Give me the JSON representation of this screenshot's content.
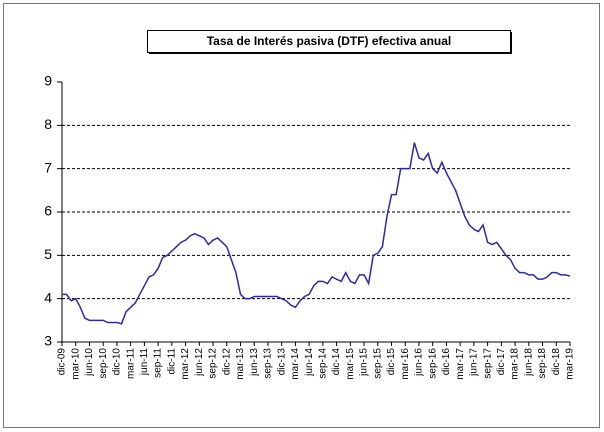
{
  "chart_data": {
    "type": "line",
    "title": "Tasa de Interés pasiva (DTF) efectiva anual",
    "categories": [
      "dic-09",
      null,
      null,
      "mar-10",
      null,
      null,
      "jun-10",
      null,
      null,
      "sep-10",
      null,
      null,
      "dic-10",
      null,
      null,
      "mar-11",
      null,
      null,
      "jun-11",
      null,
      null,
      "sep-11",
      null,
      null,
      "dic-11",
      null,
      null,
      "mar-12",
      null,
      null,
      "jun-12",
      null,
      null,
      "sep-12",
      null,
      null,
      "dic-12",
      null,
      null,
      "mar-13",
      null,
      null,
      "jun-13",
      null,
      null,
      "sep-13",
      null,
      null,
      "dic-13",
      null,
      null,
      "mar-14",
      null,
      null,
      "jun-14",
      null,
      null,
      "sep-14",
      null,
      null,
      "dic-14",
      null,
      null,
      "mar-15",
      null,
      null,
      "jun-15",
      null,
      null,
      "sep-15",
      null,
      null,
      "dic-15",
      null,
      null,
      "mar-16",
      null,
      null,
      "jun-16",
      null,
      null,
      "sep-16",
      null,
      null,
      "dic-16",
      null,
      null,
      "mar-17",
      null,
      null,
      "jun-17",
      null,
      null,
      "sep-17",
      null,
      null,
      "dic-17",
      null,
      null,
      "mar-18",
      null,
      null,
      "jun-18",
      null,
      null,
      "sep-18",
      null,
      null,
      "dic-18",
      null,
      null,
      "mar-19"
    ],
    "series": [
      {
        "name": "DTF",
        "color": "#2b2ba6",
        "values": [
          4.1,
          4.1,
          3.95,
          4.0,
          3.8,
          3.55,
          3.5,
          3.5,
          3.5,
          3.5,
          3.45,
          3.45,
          3.45,
          3.42,
          3.7,
          3.8,
          3.9,
          4.1,
          4.3,
          4.5,
          4.55,
          4.7,
          4.95,
          5.0,
          5.1,
          5.2,
          5.3,
          5.35,
          5.45,
          5.5,
          5.45,
          5.4,
          5.25,
          5.35,
          5.4,
          5.3,
          5.2,
          4.9,
          4.6,
          4.1,
          4.0,
          4.0,
          4.05,
          4.05,
          4.05,
          4.05,
          4.05,
          4.05,
          4.0,
          3.95,
          3.85,
          3.8,
          3.95,
          4.05,
          4.1,
          4.3,
          4.4,
          4.4,
          4.35,
          4.5,
          4.45,
          4.4,
          4.6,
          4.4,
          4.35,
          4.55,
          4.55,
          4.35,
          5.0,
          5.05,
          5.2,
          5.9,
          6.4,
          6.4,
          7.0,
          7.0,
          7.0,
          7.6,
          7.25,
          7.2,
          7.35,
          7.0,
          6.9,
          7.15,
          6.9,
          6.7,
          6.5,
          6.2,
          5.9,
          5.7,
          5.6,
          5.55,
          5.7,
          5.3,
          5.25,
          5.3,
          5.15,
          5.0,
          4.9,
          4.7,
          4.6,
          4.6,
          4.55,
          4.55,
          4.45,
          4.45,
          4.5,
          4.6,
          4.6,
          4.55,
          4.55,
          4.52
        ]
      }
    ],
    "ylim": [
      3,
      9
    ],
    "yticks": [
      3,
      4,
      5,
      6,
      7,
      8,
      9
    ],
    "grid": true
  }
}
